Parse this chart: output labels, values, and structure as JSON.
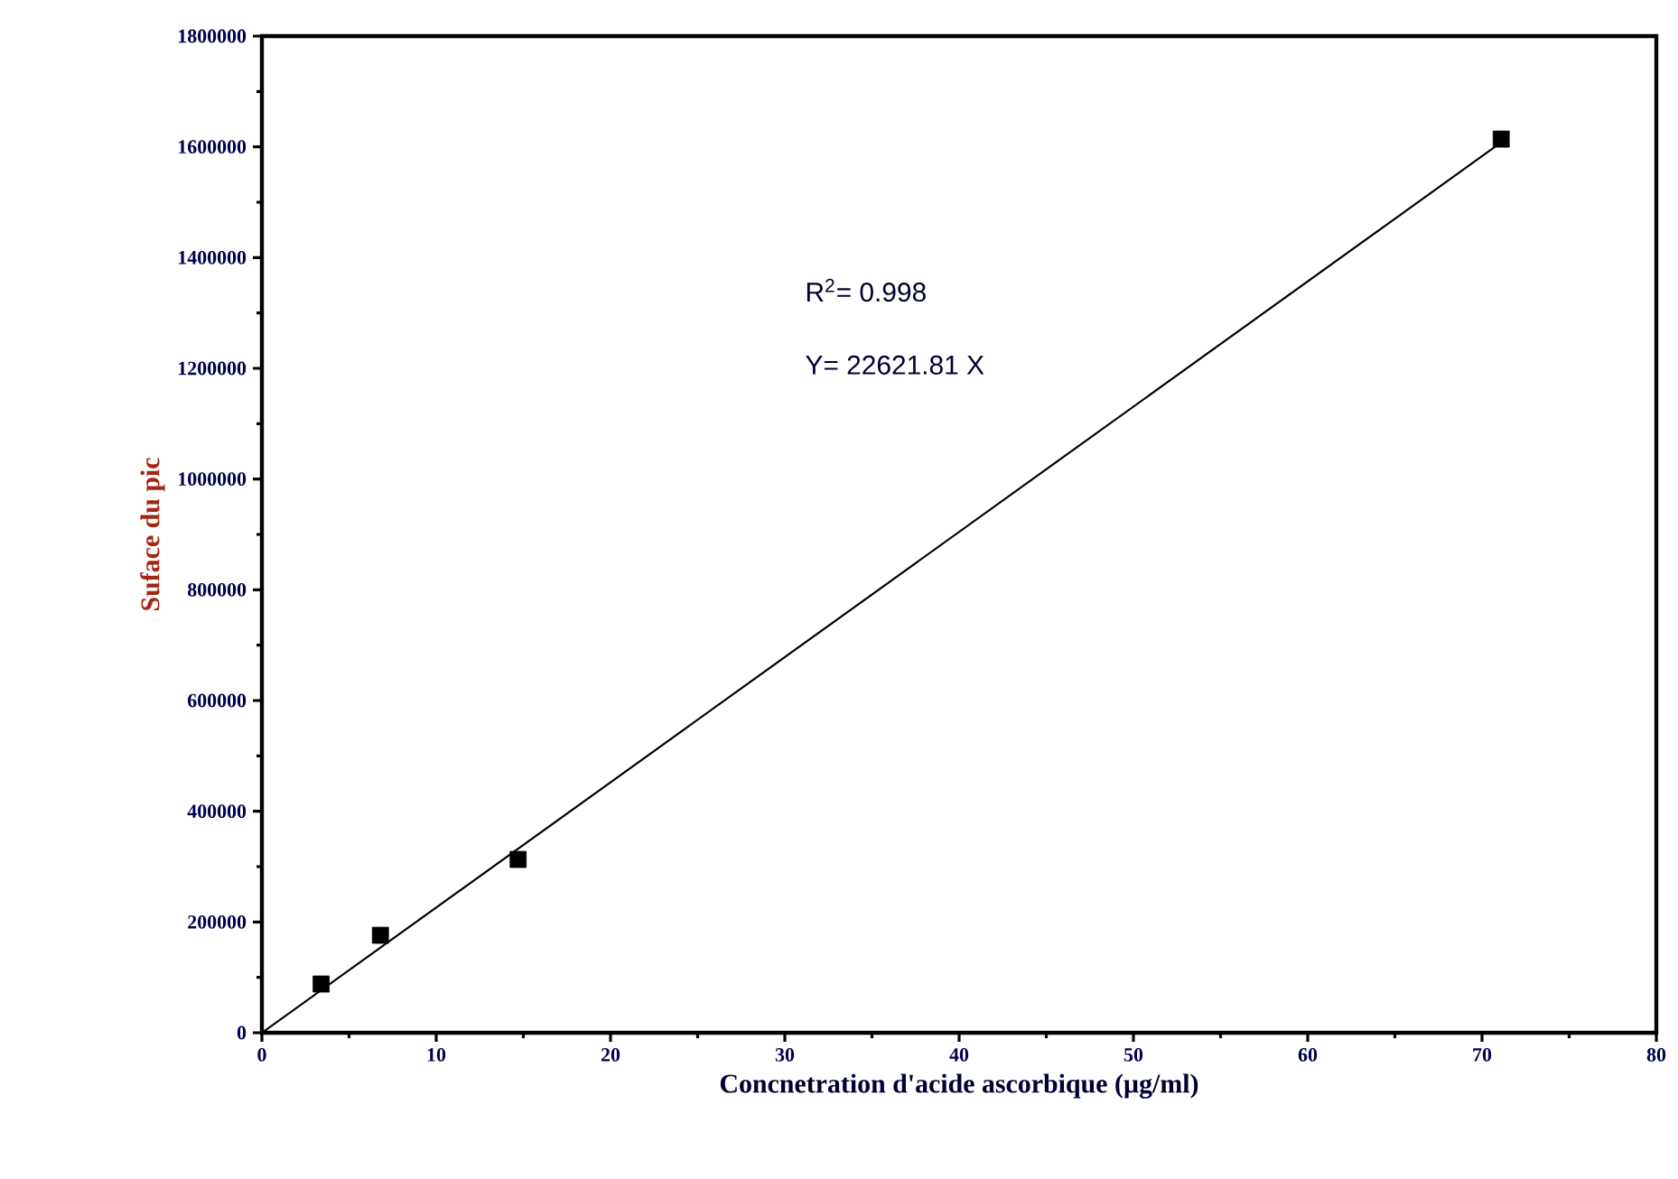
{
  "chart_data": {
    "type": "scatter",
    "xlabel": "Concnetration d'acide ascorbique (µg/ml)",
    "ylabel": "Suface du pic",
    "xlim": [
      0,
      80
    ],
    "ylim": [
      0,
      1800000
    ],
    "xticks": [
      0,
      10,
      20,
      30,
      40,
      50,
      60,
      70,
      80
    ],
    "yticks": [
      0,
      200000,
      400000,
      600000,
      800000,
      1000000,
      1200000,
      1400000,
      1600000,
      1800000
    ],
    "grid": false,
    "annotations": [
      "R$^{2}$= 0.998",
      "Y= 22621.81 X"
    ],
    "series": [
      {
        "color": "#000000",
        "marker": "square",
        "x": [
          3.4,
          6.8,
          14.7,
          71.1
        ],
        "values": [
          88000,
          176000,
          313000,
          1614000
        ]
      },
      {
        "type": "line",
        "color": "#000000",
        "marker": "none",
        "line_style": "solid",
        "x": [
          0,
          71.5
        ],
        "values": [
          0,
          1617000
        ]
      }
    ]
  }
}
